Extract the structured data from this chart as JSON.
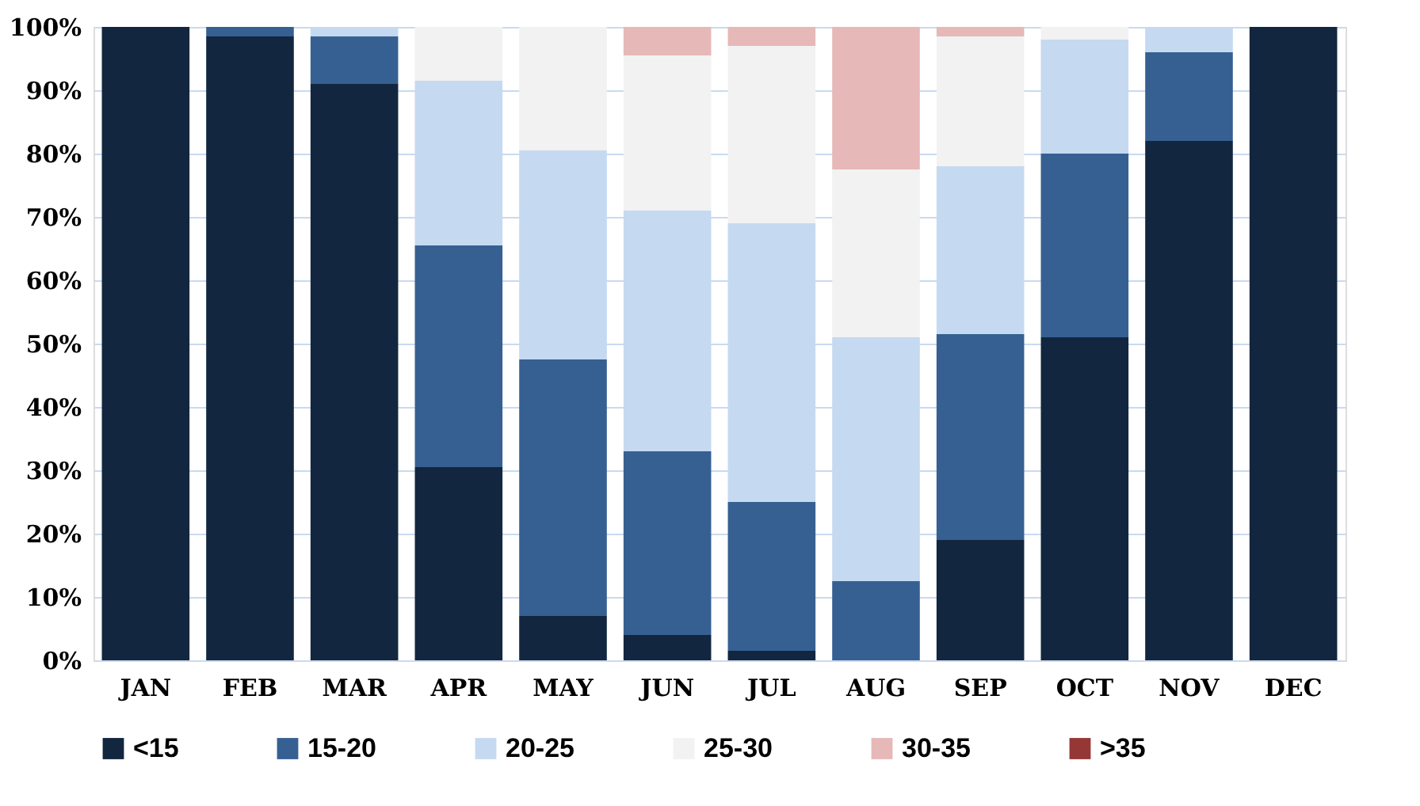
{
  "chart_data": {
    "type": "bar",
    "stacked": true,
    "categories": [
      "JAN",
      "FEB",
      "MAR",
      "APR",
      "MAY",
      "JUN",
      "JUL",
      "AUG",
      "SEP",
      "OCT",
      "NOV",
      "DEC"
    ],
    "series": [
      {
        "name": "<15",
        "color": "#12263f",
        "values": [
          100,
          98.5,
          91,
          30.5,
          7,
          4,
          1.5,
          0,
          19,
          51,
          82,
          100
        ]
      },
      {
        "name": "15-20",
        "color": "#366092",
        "values": [
          0,
          1.5,
          7.5,
          35,
          40.5,
          29,
          23.5,
          12.5,
          32.5,
          29,
          14,
          0
        ]
      },
      {
        "name": "20-25",
        "color": "#c5d9f1",
        "values": [
          0,
          0,
          1.5,
          26,
          33,
          38,
          44,
          38.5,
          26.5,
          18,
          4,
          0
        ]
      },
      {
        "name": "25-30",
        "color": "#f2f2f2",
        "values": [
          0,
          0,
          0,
          8.5,
          19.5,
          24.5,
          28,
          26.5,
          20.5,
          2,
          0,
          0
        ]
      },
      {
        "name": "30-35",
        "color": "#e6b8b7",
        "values": [
          0,
          0,
          0,
          0,
          0,
          4.5,
          3,
          22.5,
          1.5,
          0,
          0,
          0
        ]
      },
      {
        "name": ">35",
        "color": "#953735",
        "values": [
          0,
          0,
          0,
          0,
          0,
          0,
          0,
          0,
          0,
          0,
          0,
          0
        ]
      }
    ],
    "ylim": [
      0,
      100
    ],
    "yticks": [
      {
        "value": 0,
        "label": "0%"
      },
      {
        "value": 10,
        "label": "10%"
      },
      {
        "value": 20,
        "label": "20%"
      },
      {
        "value": 30,
        "label": "30%"
      },
      {
        "value": 40,
        "label": "40%"
      },
      {
        "value": 50,
        "label": "50%"
      },
      {
        "value": 60,
        "label": "60%"
      },
      {
        "value": 70,
        "label": "70%"
      },
      {
        "value": 80,
        "label": "80%"
      },
      {
        "value": 90,
        "label": "90%"
      },
      {
        "value": 100,
        "label": "100%"
      }
    ],
    "grid": "y",
    "legend": "bottom"
  }
}
